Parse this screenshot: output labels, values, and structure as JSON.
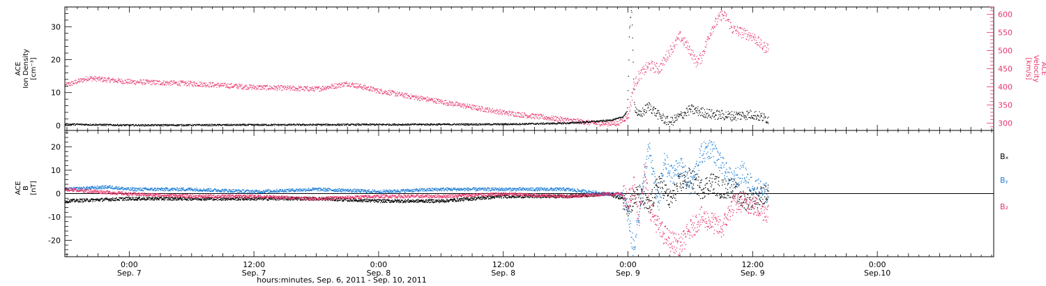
{
  "colors": {
    "black": "#000000",
    "pink": "#e8336a",
    "blue": "#1f7fd6"
  },
  "chart_data": [
    {
      "type": "scatter",
      "panel": "top",
      "ylabel_left": [
        "ACE",
        "Ion Density",
        "[cm⁻³]"
      ],
      "ylabel_right": [
        "ACE",
        "Velocity",
        "[km/s]"
      ],
      "y_left_ticks": [
        0,
        10,
        20,
        30
      ],
      "ylim_left": [
        -1.5,
        36
      ],
      "y_right_ticks": [
        300,
        350,
        400,
        450,
        500,
        550,
        600
      ],
      "ylim_right": [
        280,
        620
      ],
      "x_unit": "hours since Sep. 6 2011 00:00",
      "xlim": [
        17.8,
        107.2
      ],
      "series": [
        {
          "axis": "left",
          "color": "black",
          "x": [
            17.8,
            24,
            36,
            48,
            60,
            66,
            68,
            70,
            71,
            71.5,
            71.9,
            72.0,
            72.1,
            72.3,
            72.6,
            73,
            74,
            75,
            76,
            78,
            80,
            82,
            84,
            85.5
          ],
          "y": [
            0.5,
            0.2,
            0.3,
            0.4,
            0.5,
            0.8,
            1.2,
            1.6,
            2.2,
            2.8,
            4.5,
            12,
            30,
            36,
            6,
            3,
            6,
            3,
            1,
            5,
            3.5,
            3,
            3.5,
            2
          ]
        },
        {
          "axis": "right",
          "color": "pink",
          "x": [
            17.8,
            20,
            24,
            30,
            36,
            42,
            45,
            48,
            54,
            57,
            60,
            63,
            66,
            69,
            71,
            72,
            72.5,
            73,
            74,
            75,
            76,
            77,
            78,
            78.5,
            79,
            80,
            81,
            81.5,
            82,
            83,
            84,
            85,
            85.5
          ],
          "y": [
            405,
            425,
            415,
            410,
            400,
            395,
            410,
            390,
            360,
            345,
            330,
            320,
            310,
            300,
            300,
            320,
            400,
            430,
            460,
            450,
            500,
            540,
            500,
            470,
            480,
            560,
            600,
            590,
            560,
            550,
            540,
            510,
            510
          ]
        }
      ]
    },
    {
      "type": "scatter",
      "panel": "bottom",
      "ylabel_left": [
        "ACE",
        "B",
        "[nT]"
      ],
      "y_ticks": [
        -20,
        -10,
        0,
        10,
        20
      ],
      "ylim": [
        -27,
        27
      ],
      "zero_line": true,
      "x_unit": "hours since Sep. 6 2011 00:00",
      "xlim": [
        17.8,
        107.2
      ],
      "legend_placement": "right",
      "series": [
        {
          "name": "Bx",
          "color": "black",
          "x": [
            17.8,
            24,
            30,
            36,
            42,
            48,
            54,
            60,
            66,
            70,
            71.5,
            72,
            73,
            74,
            75,
            76,
            77,
            78,
            79,
            80,
            81,
            82,
            83,
            84,
            85.5
          ],
          "y": [
            -3,
            -2,
            -2,
            -2,
            -2,
            -3,
            -3,
            -1,
            -1,
            0,
            -2,
            -5,
            0,
            -6,
            6,
            -3,
            5,
            7,
            2,
            5,
            2,
            3,
            -3,
            -2,
            0
          ]
        },
        {
          "name": "By",
          "color": "blue",
          "x": [
            17.8,
            22,
            24,
            30,
            36,
            42,
            48,
            54,
            60,
            66,
            70,
            71.5,
            72,
            72.5,
            73,
            73.5,
            74,
            74.5,
            75,
            75.5,
            76,
            77,
            78,
            79,
            80,
            81,
            82,
            83,
            84,
            85.5
          ],
          "y": [
            2,
            3,
            2,
            2,
            1,
            2,
            1,
            2,
            2,
            2,
            0,
            0,
            -10,
            -24,
            -8,
            5,
            20,
            5,
            -5,
            15,
            8,
            12,
            3,
            17,
            20,
            12,
            5,
            10,
            3,
            0
          ]
        },
        {
          "name": "Bz",
          "color": "pink",
          "x": [
            17.8,
            24,
            30,
            36,
            42,
            48,
            54,
            60,
            66,
            70,
            71.5,
            72,
            72.5,
            73,
            73.5,
            74,
            75,
            76,
            77,
            78,
            79,
            80,
            81,
            82,
            83,
            84,
            85.5
          ],
          "y": [
            2,
            0,
            -1,
            -1,
            -2,
            -1,
            -1,
            0,
            -1,
            0,
            0,
            -3,
            5,
            -12,
            10,
            -5,
            -15,
            -20,
            -22,
            -15,
            -10,
            -12,
            -15,
            -5,
            -3,
            -5,
            -8
          ]
        }
      ]
    }
  ],
  "legend": {
    "bx": "Bₓ",
    "by": "Bᵧ",
    "bz": "B₂"
  },
  "x_axis": {
    "ticks": [
      {
        "hour": 24,
        "time": "0:00",
        "date": "Sep. 7"
      },
      {
        "hour": 36,
        "time": "12:00",
        "date": "Sep. 7"
      },
      {
        "hour": 48,
        "time": "0:00",
        "date": "Sep. 8"
      },
      {
        "hour": 60,
        "time": "12:00",
        "date": "Sep. 8"
      },
      {
        "hour": 72,
        "time": "0:00",
        "date": "Sep. 9"
      },
      {
        "hour": 84,
        "time": "12:00",
        "date": "Sep. 9"
      },
      {
        "hour": 96,
        "time": "0:00",
        "date": "Sep.10"
      }
    ],
    "label": "hours:minutes, Sep.  6, 2011 - Sep. 10, 2011"
  }
}
